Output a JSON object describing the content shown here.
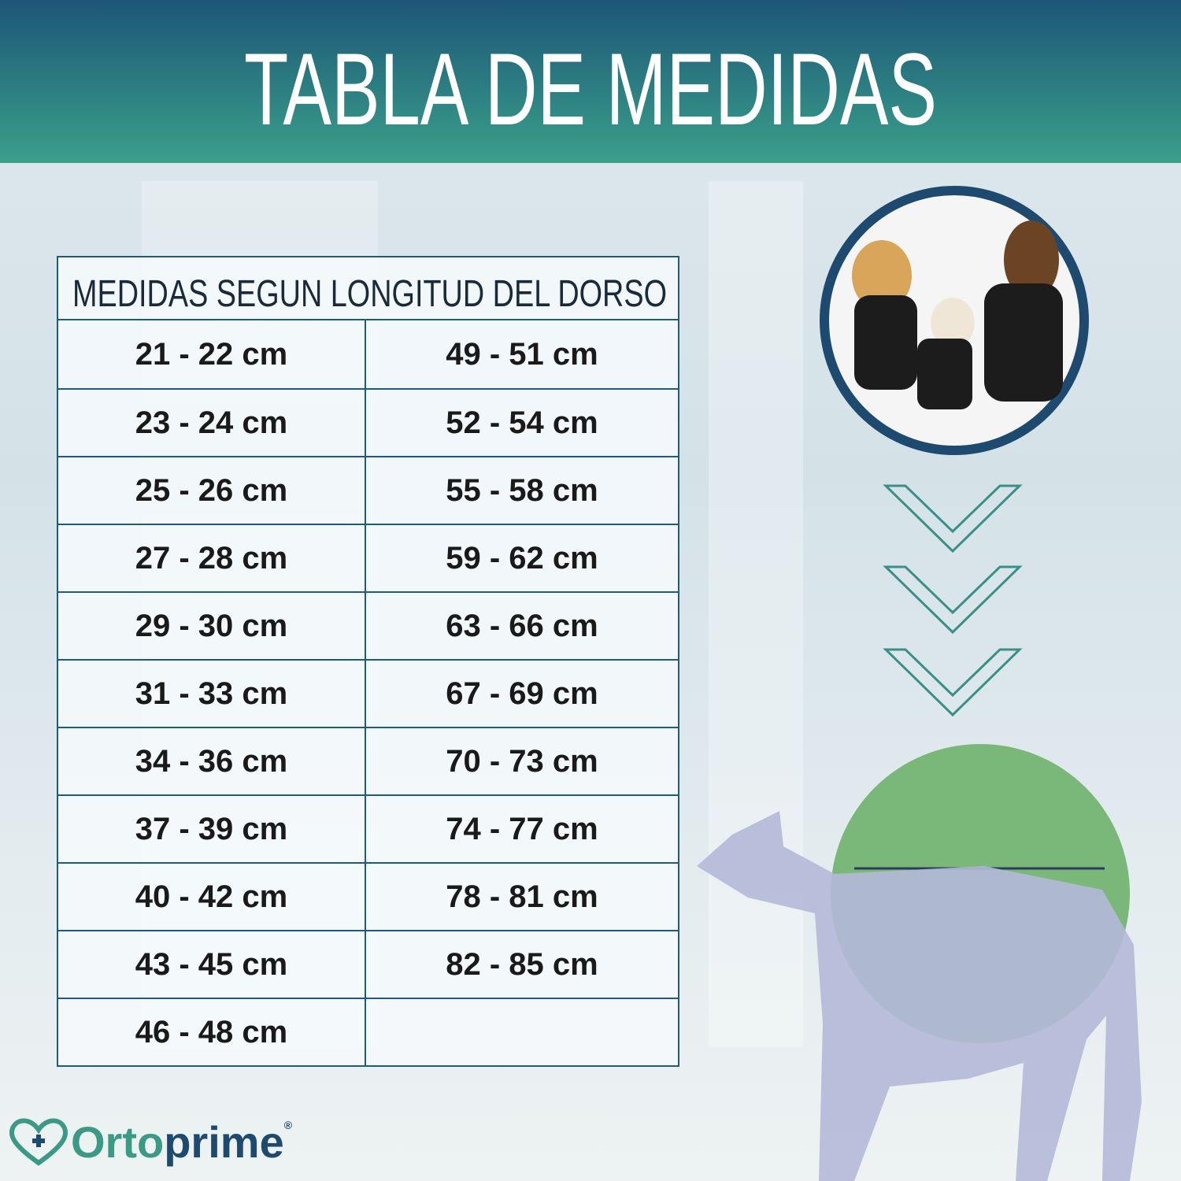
{
  "header": {
    "title": "TABLA DE MEDIDAS"
  },
  "table": {
    "caption": "MEDIDAS SEGUN LONGITUD DEL DORSO",
    "rows": [
      [
        "21 - 22 cm",
        "49 - 51 cm"
      ],
      [
        "23 - 24 cm",
        "52 - 54 cm"
      ],
      [
        "25 - 26 cm",
        "55 - 58 cm"
      ],
      [
        "27 - 28 cm",
        "59 - 62 cm"
      ],
      [
        "29 - 30 cm",
        "63 - 66 cm"
      ],
      [
        "31 - 33 cm",
        "67 - 69 cm"
      ],
      [
        "34 - 36 cm",
        "70 - 73 cm"
      ],
      [
        "37 - 39 cm",
        "74 - 77 cm"
      ],
      [
        "40 - 42 cm",
        "78 - 81 cm"
      ],
      [
        "43 - 45 cm",
        "82 - 85 cm"
      ],
      [
        "46 - 48 cm"
      ]
    ]
  },
  "brand": {
    "parts": [
      "Orto",
      "prime"
    ],
    "mark": "®"
  }
}
